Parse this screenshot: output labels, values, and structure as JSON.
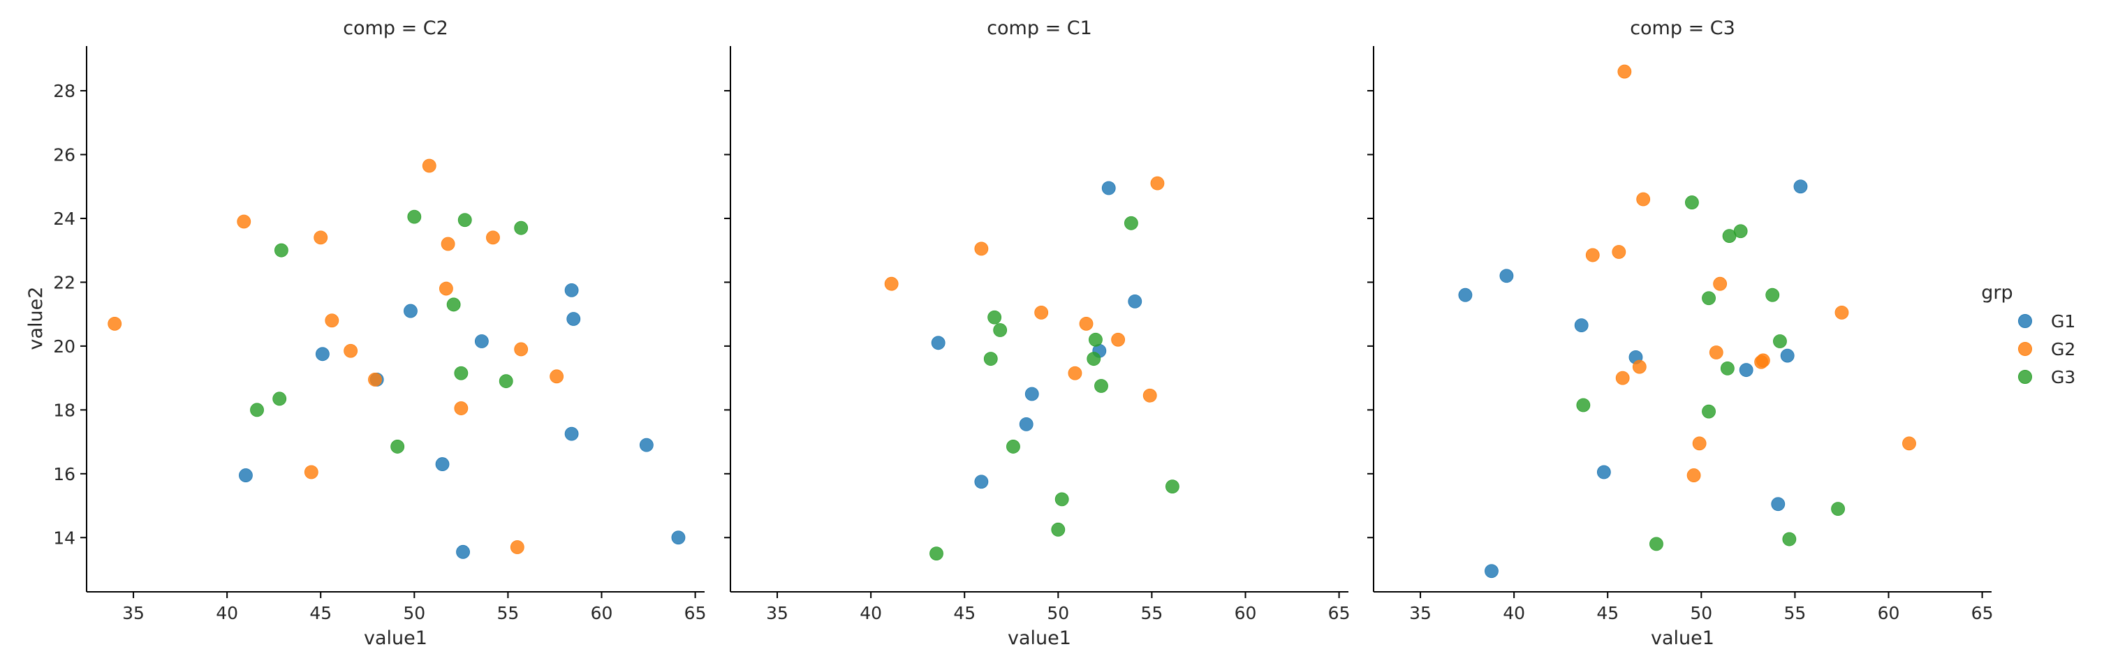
{
  "chart_data": {
    "type": "scatter",
    "facet_variable": "comp",
    "xlabel": "value1",
    "ylabel": "value2",
    "xlim": [
      32.5,
      65.5
    ],
    "ylim": [
      12.3,
      29.4
    ],
    "xticks": [
      35,
      40,
      45,
      50,
      55,
      60,
      65
    ],
    "yticks": [
      14,
      16,
      18,
      20,
      22,
      24,
      26,
      28
    ],
    "grid": false,
    "sharey": true,
    "legend": {
      "title": "grp",
      "placement": "right",
      "entries": [
        {
          "name": "G1",
          "color": "#1f77b4"
        },
        {
          "name": "G2",
          "color": "#ff7f0e"
        },
        {
          "name": "G3",
          "color": "#2ca02c"
        }
      ]
    },
    "panels": [
      {
        "title": "comp = C2",
        "series": [
          {
            "name": "G1",
            "points": [
              [
                41.0,
                15.95
              ],
              [
                45.1,
                19.75
              ],
              [
                48.0,
                18.95
              ],
              [
                49.8,
                21.1
              ],
              [
                51.5,
                16.3
              ],
              [
                52.6,
                13.55
              ],
              [
                53.6,
                20.15
              ],
              [
                58.4,
                21.75
              ],
              [
                58.5,
                20.85
              ],
              [
                58.4,
                17.25
              ],
              [
                62.4,
                16.9
              ],
              [
                64.1,
                14.0
              ]
            ]
          },
          {
            "name": "G2",
            "points": [
              [
                34.0,
                20.7
              ],
              [
                40.9,
                23.9
              ],
              [
                44.5,
                16.05
              ],
              [
                45.0,
                23.4
              ],
              [
                45.6,
                20.8
              ],
              [
                46.6,
                19.85
              ],
              [
                47.9,
                18.95
              ],
              [
                50.8,
                25.65
              ],
              [
                51.7,
                21.8
              ],
              [
                51.8,
                23.2
              ],
              [
                52.5,
                18.05
              ],
              [
                54.2,
                23.4
              ],
              [
                55.5,
                13.7
              ],
              [
                55.7,
                19.9
              ],
              [
                57.6,
                19.05
              ]
            ]
          },
          {
            "name": "G3",
            "points": [
              [
                41.6,
                18.0
              ],
              [
                42.8,
                18.35
              ],
              [
                42.9,
                23.0
              ],
              [
                49.1,
                16.85
              ],
              [
                50.0,
                24.05
              ],
              [
                52.1,
                21.3
              ],
              [
                52.5,
                19.15
              ],
              [
                52.7,
                23.95
              ],
              [
                54.9,
                18.9
              ],
              [
                55.7,
                23.7
              ]
            ]
          }
        ]
      },
      {
        "title": "comp = C1",
        "series": [
          {
            "name": "G1",
            "points": [
              [
                43.6,
                20.1
              ],
              [
                45.9,
                15.75
              ],
              [
                48.3,
                17.55
              ],
              [
                48.6,
                18.5
              ],
              [
                52.2,
                19.85
              ],
              [
                52.7,
                24.95
              ],
              [
                54.1,
                21.4
              ]
            ]
          },
          {
            "name": "G2",
            "points": [
              [
                41.1,
                21.95
              ],
              [
                45.9,
                23.05
              ],
              [
                49.1,
                21.05
              ],
              [
                50.9,
                19.15
              ],
              [
                51.5,
                20.7
              ],
              [
                53.2,
                20.2
              ],
              [
                54.9,
                18.45
              ],
              [
                55.3,
                25.1
              ]
            ]
          },
          {
            "name": "G3",
            "points": [
              [
                43.5,
                13.5
              ],
              [
                46.4,
                19.6
              ],
              [
                46.6,
                20.9
              ],
              [
                46.9,
                20.5
              ],
              [
                47.6,
                16.85
              ],
              [
                50.0,
                14.25
              ],
              [
                50.2,
                15.2
              ],
              [
                51.9,
                19.6
              ],
              [
                52.0,
                20.2
              ],
              [
                52.3,
                18.75
              ],
              [
                53.9,
                23.85
              ],
              [
                56.1,
                15.6
              ]
            ]
          }
        ]
      },
      {
        "title": "comp = C3",
        "series": [
          {
            "name": "G1",
            "points": [
              [
                37.4,
                21.6
              ],
              [
                38.8,
                12.95
              ],
              [
                39.6,
                22.2
              ],
              [
                43.6,
                20.65
              ],
              [
                44.8,
                16.05
              ],
              [
                46.5,
                19.65
              ],
              [
                52.4,
                19.25
              ],
              [
                54.1,
                15.05
              ],
              [
                54.6,
                19.7
              ],
              [
                55.3,
                25.0
              ]
            ]
          },
          {
            "name": "G2",
            "points": [
              [
                44.2,
                22.85
              ],
              [
                45.6,
                22.95
              ],
              [
                45.8,
                19.0
              ],
              [
                45.9,
                28.6
              ],
              [
                46.7,
                19.35
              ],
              [
                46.9,
                24.6
              ],
              [
                49.6,
                15.95
              ],
              [
                49.9,
                16.95
              ],
              [
                50.8,
                19.8
              ],
              [
                51.0,
                21.95
              ],
              [
                53.2,
                19.5
              ],
              [
                53.3,
                19.55
              ],
              [
                57.5,
                21.05
              ],
              [
                61.1,
                16.95
              ]
            ]
          },
          {
            "name": "G3",
            "points": [
              [
                43.7,
                18.15
              ],
              [
                47.6,
                13.8
              ],
              [
                49.5,
                24.5
              ],
              [
                50.4,
                21.5
              ],
              [
                50.4,
                17.95
              ],
              [
                51.4,
                19.3
              ],
              [
                51.5,
                23.45
              ],
              [
                52.1,
                23.6
              ],
              [
                53.8,
                21.6
              ],
              [
                54.2,
                20.15
              ],
              [
                54.7,
                13.95
              ],
              [
                57.3,
                14.9
              ]
            ]
          }
        ]
      }
    ]
  }
}
